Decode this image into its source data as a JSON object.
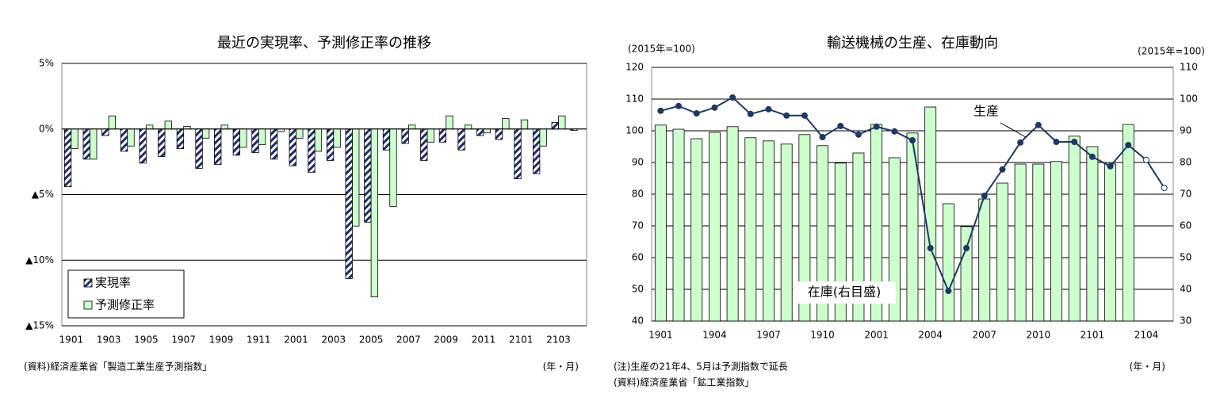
{
  "chart_data": [
    {
      "type": "bar",
      "title": "最近の実現率、予測修正率の推移",
      "categories": [
        "1901",
        null,
        "1903",
        null,
        "1905",
        null,
        "1907",
        null,
        "1909",
        null,
        "1911",
        null,
        "2001",
        null,
        "2003",
        null,
        "2005",
        null,
        "2007",
        null,
        "2009",
        null,
        "2011",
        null,
        "2101",
        null,
        "2103",
        null
      ],
      "series": [
        {
          "name": "実現率",
          "color": "#1f2a6b",
          "pattern": "hatch",
          "values": [
            -4.4,
            -2.3,
            -0.5,
            -1.7,
            -2.6,
            -2.1,
            -1.5,
            -3.0,
            -2.7,
            -2.0,
            -1.8,
            -2.3,
            -2.8,
            -3.3,
            -2.4,
            -11.4,
            -7.1,
            -1.6,
            -1.1,
            -2.4,
            -1.0,
            -1.6,
            -0.5,
            -0.8,
            -3.8,
            -3.4,
            0.5,
            -0.1
          ]
        },
        {
          "name": "予測修正率",
          "color": "#ccffcc",
          "values": [
            -1.5,
            -2.3,
            1.0,
            -1.3,
            0.3,
            0.6,
            0.2,
            -0.7,
            0.3,
            -1.4,
            -1.2,
            -0.2,
            -0.7,
            -1.7,
            -1.4,
            -7.4,
            -12.8,
            -5.9,
            0.3,
            -1.0,
            1.0,
            0.3,
            -0.3,
            0.8,
            0.7,
            -1.3,
            1.0,
            0
          ]
        }
      ],
      "ylim": [
        -15,
        5
      ],
      "yticks": [
        {
          "value": 5,
          "label": "5%"
        },
        {
          "value": 0,
          "label": "0%"
        },
        {
          "value": -5,
          "label": "▲5%"
        },
        {
          "value": -10,
          "label": "▲10%"
        },
        {
          "value": -15,
          "label": "▲15%"
        }
      ],
      "grid": true,
      "legend": "lower left",
      "unit_label": "(年・月)",
      "notes": [
        "(資料)経済産業省「製造工業生産予測指数」"
      ]
    },
    {
      "type": "bar_line",
      "title": "輸送機械の生産、在庫動向",
      "y_label": "(2015年=100)",
      "y2_label": "(2015年=100)",
      "categories": [
        "1901",
        null,
        null,
        "1904",
        null,
        null,
        "1907",
        null,
        null,
        "1910",
        null,
        null,
        "2001",
        null,
        null,
        "2004",
        null,
        null,
        "2007",
        null,
        null,
        "2010",
        null,
        null,
        "2101",
        null,
        null,
        "2104",
        null
      ],
      "series": [
        {
          "name": "在庫(右目盛)",
          "kind": "bar",
          "axis": "y2",
          "color": "#ccffcc",
          "values": [
            91.8,
            90.5,
            87.5,
            89.5,
            91.3,
            87.8,
            86.8,
            85.8,
            88.8,
            85.3,
            79.8,
            83,
            92,
            81.5,
            89.3,
            97.5,
            67,
            59.8,
            68.5,
            73.5,
            79.5,
            79.5,
            80.3,
            88.3,
            85,
            79.5,
            92,
            null,
            null
          ]
        },
        {
          "name": "生産",
          "kind": "line",
          "color": "#1f3864",
          "marker_fills": [
            "#1f3864",
            "#1f3864",
            "#1f3864",
            "#1f3864",
            "#1f3864",
            "#1f3864",
            "#1f3864",
            "#1f3864",
            "#1f3864",
            "#1f3864",
            "#1f3864",
            "#1f3864",
            "#1f3864",
            "#1f3864",
            "#1f3864",
            "#1f3864",
            "#1f3864",
            "#1f3864",
            "#1f3864",
            "#1f3864",
            "#1f3864",
            "#1f3864",
            "#1f3864",
            "#1f3864",
            "#1f3864",
            "#1f3864",
            "#1f3864",
            "#ffffff",
            "#ffffff"
          ],
          "values": [
            106.3,
            107.8,
            105.5,
            107.3,
            110.5,
            105.3,
            106.8,
            104.8,
            104.8,
            98,
            101.5,
            98.8,
            101.3,
            99.8,
            97,
            63,
            49.5,
            63,
            79.5,
            87.8,
            96.3,
            101.8,
            96.5,
            96.5,
            91.8,
            88.8,
            95.5,
            90.8,
            82
          ]
        }
      ],
      "ylim": [
        40,
        120
      ],
      "yticks": [
        40,
        50,
        60,
        70,
        80,
        90,
        100,
        110,
        120
      ],
      "y2lim": [
        30,
        110
      ],
      "y2ticks": [
        30,
        40,
        50,
        60,
        70,
        80,
        90,
        100,
        110
      ],
      "grid": true,
      "unit_label": "(年・月)",
      "notes": [
        "(注)生産の21年4、5月は予測指数で延長",
        "(資料)経済産業省「鉱工業指数」"
      ]
    }
  ]
}
